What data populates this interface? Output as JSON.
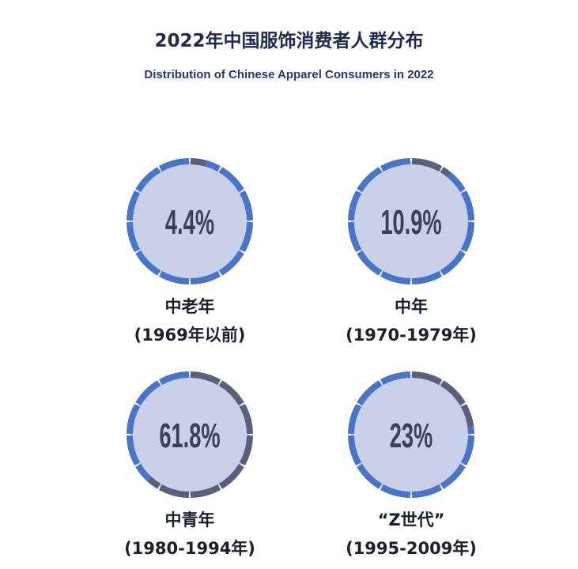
{
  "title": "2022年中国服饰消费者人群分布",
  "subtitle": "Distribution of Chinese Apparel Consumers in 2022",
  "colors": {
    "filled": "#5a5f7c",
    "empty": "#4a75c6",
    "inner": "#c8d0ea",
    "text": "#3b4058"
  },
  "chart_data": {
    "type": "pie",
    "title": "2022年中国服饰消费者人群分布",
    "subtitle": "Distribution of Chinese Apparel Consumers in 2022",
    "segments_per_ring": 12,
    "items": [
      {
        "name": "中老年",
        "period": "(1969年以前)",
        "value": 4.4,
        "label": "4.4%"
      },
      {
        "name": "中年",
        "period": "(1970-1979年)",
        "value": 10.9,
        "label": "10.9%"
      },
      {
        "name": "中青年",
        "period": "(1980-1994年)",
        "value": 61.8,
        "label": "61.8%"
      },
      {
        "name": "“Z世代”",
        "period": "(1995-2009年)",
        "value": 23,
        "label": "23%"
      }
    ]
  }
}
